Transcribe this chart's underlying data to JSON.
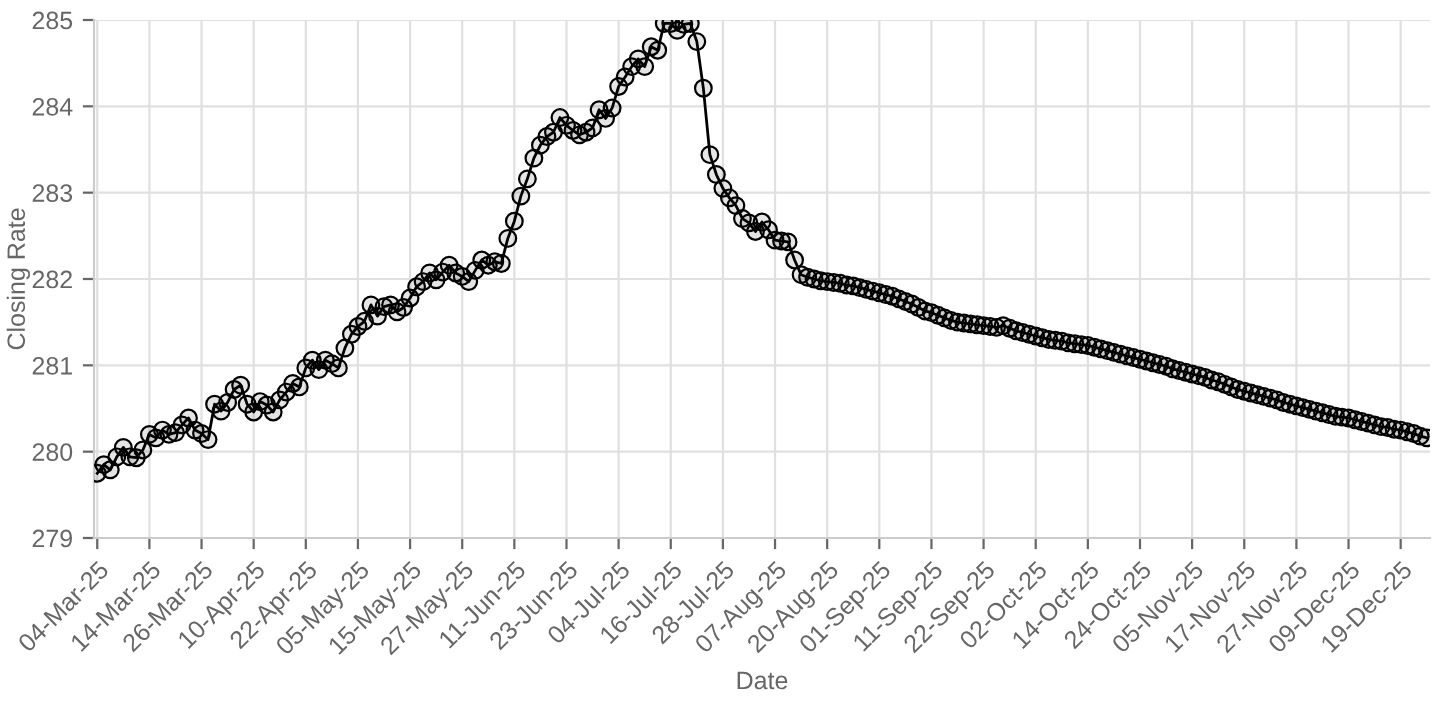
{
  "chart_data": {
    "type": "line",
    "xlabel": "Date",
    "ylabel": "Closing Rate",
    "categories": [
      "04-Mar-25",
      null,
      null,
      null,
      null,
      null,
      null,
      null,
      "14-Mar-25",
      null,
      null,
      null,
      null,
      null,
      null,
      null,
      "26-Mar-25",
      null,
      null,
      null,
      null,
      null,
      null,
      null,
      "10-Apr-25",
      null,
      null,
      null,
      null,
      null,
      null,
      null,
      "22-Apr-25",
      null,
      null,
      null,
      null,
      null,
      null,
      null,
      "05-May-25",
      null,
      null,
      null,
      null,
      null,
      null,
      null,
      "15-May-25",
      null,
      null,
      null,
      null,
      null,
      null,
      null,
      "27-May-25",
      null,
      null,
      null,
      null,
      null,
      null,
      null,
      "11-Jun-25",
      null,
      null,
      null,
      null,
      null,
      null,
      null,
      "23-Jun-25",
      null,
      null,
      null,
      null,
      null,
      null,
      null,
      "04-Jul-25",
      null,
      null,
      null,
      null,
      null,
      null,
      null,
      "16-Jul-25",
      null,
      null,
      null,
      null,
      null,
      null,
      null,
      "28-Jul-25",
      null,
      null,
      null,
      null,
      null,
      null,
      null,
      "07-Aug-25",
      null,
      null,
      null,
      null,
      null,
      null,
      null,
      "20-Aug-25",
      null,
      null,
      null,
      null,
      null,
      null,
      null,
      "01-Sep-25",
      null,
      null,
      null,
      null,
      null,
      null,
      null,
      "11-Sep-25",
      null,
      null,
      null,
      null,
      null,
      null,
      null,
      "22-Sep-25",
      null,
      null,
      null,
      null,
      null,
      null,
      null,
      "02-Oct-25",
      null,
      null,
      null,
      null,
      null,
      null,
      null,
      "14-Oct-25",
      null,
      null,
      null,
      null,
      null,
      null,
      null,
      "24-Oct-25",
      null,
      null,
      null,
      null,
      null,
      null,
      null,
      "05-Nov-25",
      null,
      null,
      null,
      null,
      null,
      null,
      null,
      "17-Nov-25",
      null,
      null,
      null,
      null,
      null,
      null,
      null,
      "27-Nov-25",
      null,
      null,
      null,
      null,
      null,
      null,
      null,
      "09-Dec-25",
      null,
      null,
      null,
      null,
      null,
      null,
      null,
      "19-Dec-25",
      null,
      null,
      null,
      null
    ],
    "series": [
      {
        "color": "#000000",
        "values": [
          279.75,
          279.85,
          279.79,
          279.94,
          280.05,
          279.94,
          279.93,
          280.02,
          280.2,
          280.16,
          280.25,
          280.2,
          280.22,
          280.31,
          280.39,
          280.25,
          280.21,
          280.14,
          280.55,
          280.47,
          280.57,
          280.72,
          280.77,
          280.55,
          280.46,
          280.58,
          280.54,
          280.46,
          280.6,
          280.69,
          280.79,
          280.75,
          280.97,
          281.06,
          280.95,
          281.06,
          281.02,
          280.97,
          281.2,
          281.36,
          281.45,
          281.51,
          281.7,
          281.57,
          281.68,
          281.7,
          281.62,
          281.67,
          281.78,
          281.91,
          281.97,
          282.07,
          281.99,
          282.08,
          282.16,
          282.07,
          282.03,
          281.97,
          282.1,
          282.22,
          282.16,
          282.2,
          282.18,
          282.47,
          282.67,
          282.96,
          283.16,
          283.4,
          283.55,
          283.65,
          283.7,
          283.87,
          283.78,
          283.72,
          283.67,
          283.7,
          283.75,
          283.96,
          283.86,
          283.98,
          284.23,
          284.34,
          284.46,
          284.55,
          284.46,
          284.69,
          284.65,
          284.96,
          284.96,
          284.88,
          284.95,
          284.96,
          284.75,
          284.21,
          283.44,
          283.21,
          283.05,
          282.94,
          282.85,
          282.7,
          282.65,
          282.55,
          282.66,
          282.57,
          282.45,
          282.44,
          282.43,
          282.22,
          282.05,
          282.02,
          282.0,
          281.98,
          281.97,
          281.96,
          281.95,
          281.93,
          281.92,
          281.9,
          281.88,
          281.86,
          281.84,
          281.82,
          281.8,
          281.77,
          281.74,
          281.71,
          281.67,
          281.63,
          281.61,
          281.58,
          281.55,
          281.52,
          281.5,
          281.49,
          281.48,
          281.47,
          281.46,
          281.45,
          281.44,
          281.46,
          281.43,
          281.4,
          281.38,
          281.36,
          281.34,
          281.32,
          281.3,
          281.29,
          281.28,
          281.26,
          281.25,
          281.24,
          281.23,
          281.21,
          281.19,
          281.17,
          281.15,
          281.13,
          281.11,
          281.09,
          281.07,
          281.05,
          281.03,
          281.01,
          280.99,
          280.96,
          280.94,
          280.92,
          280.9,
          280.88,
          280.86,
          280.83,
          280.81,
          280.78,
          280.75,
          280.72,
          280.7,
          280.68,
          280.66,
          280.64,
          280.62,
          280.6,
          280.57,
          280.55,
          280.53,
          280.51,
          280.49,
          280.47,
          280.45,
          280.43,
          280.41,
          280.4,
          280.39,
          280.37,
          280.35,
          280.33,
          280.31,
          280.29,
          280.28,
          280.26,
          280.25,
          280.23,
          280.21,
          280.18,
          280.16
        ]
      }
    ],
    "ylim": [
      279,
      285
    ],
    "yticks": [
      279,
      280,
      281,
      282,
      283,
      284,
      285
    ],
    "grid": true,
    "marker": "circle",
    "line_style": "solid"
  }
}
